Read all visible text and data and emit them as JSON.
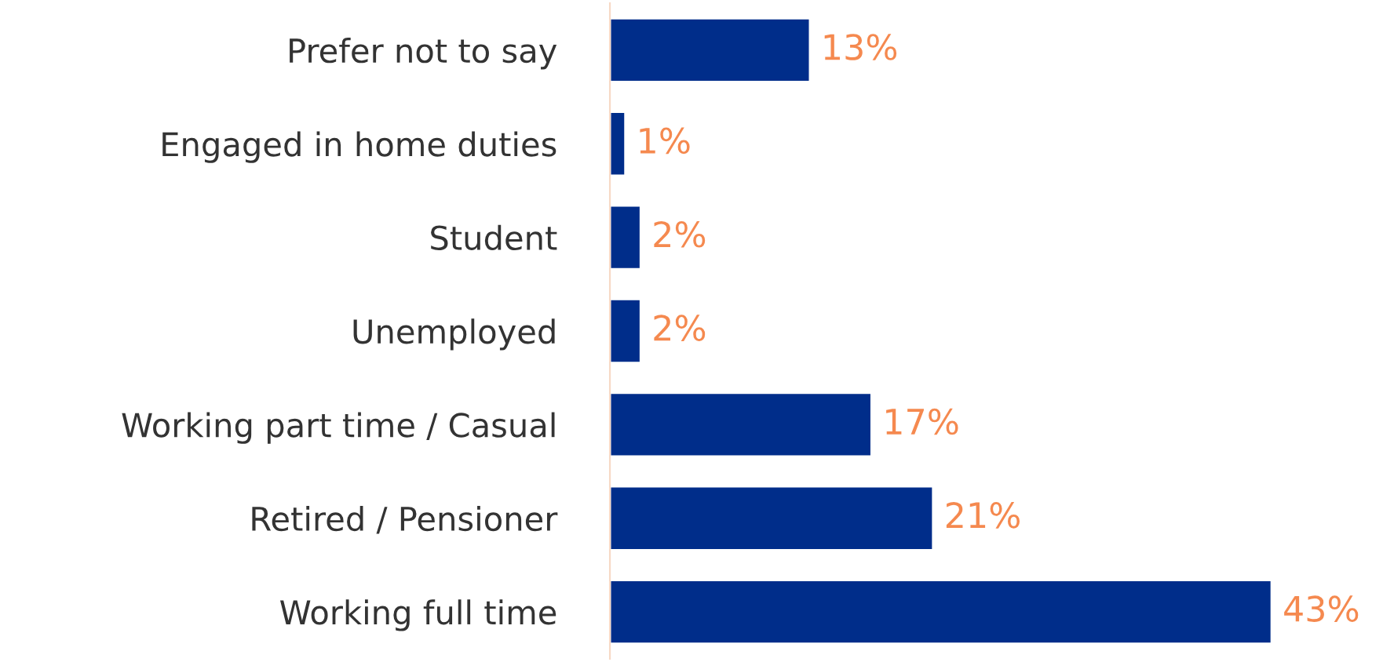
{
  "chart_data": {
    "type": "bar",
    "orientation": "horizontal",
    "categories": [
      "Prefer not to say",
      "Engaged in home duties",
      "Student",
      "Unemployed",
      "Working part time / Casual",
      "Retired / Pensioner",
      "Working full time"
    ],
    "values": [
      13,
      1,
      2,
      2,
      17,
      21,
      43
    ],
    "value_labels": [
      "13%",
      "1%",
      "2%",
      "2%",
      "17%",
      "21%",
      "43%"
    ],
    "color": "#002d8a",
    "grid": false,
    "legend": false
  }
}
